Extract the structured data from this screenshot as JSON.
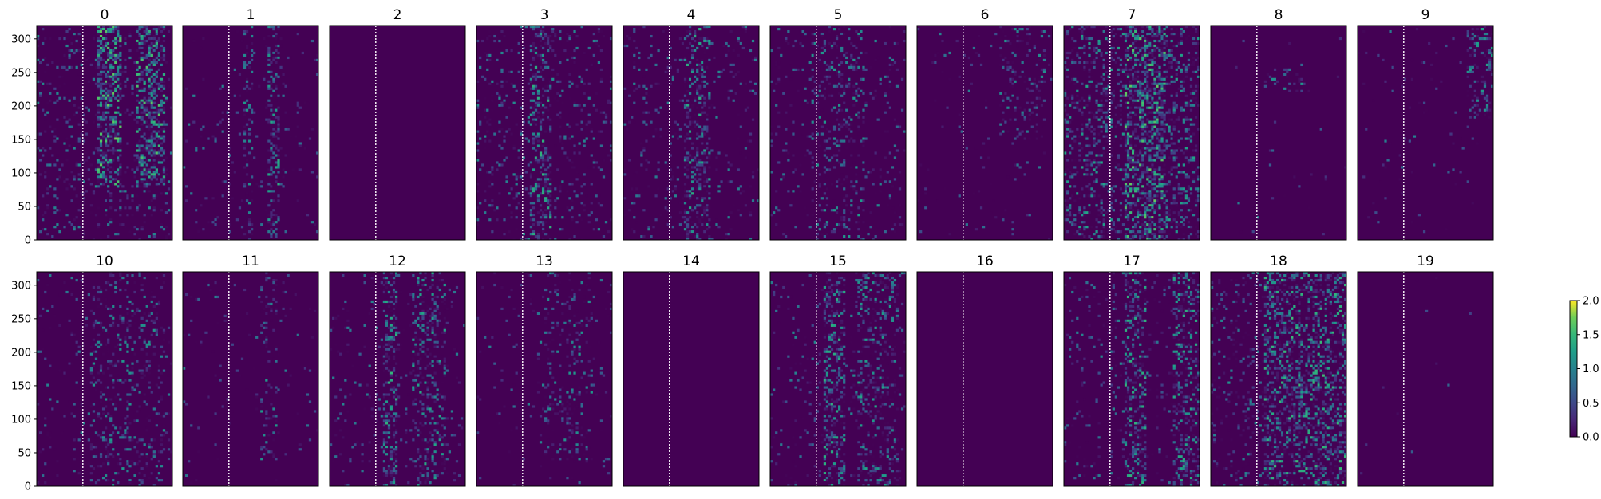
{
  "chart_data": {
    "type": "heatmap",
    "layout": {
      "rows": 2,
      "cols": 10
    },
    "panels": [
      {
        "title": "0",
        "density": 0.3,
        "bands": [
          [
            0.45,
            0.62,
            0.95
          ],
          [
            0.74,
            0.95,
            0.85
          ]
        ],
        "yband": [
          80,
          320
        ]
      },
      {
        "title": "1",
        "density": 0.08,
        "bands": [
          [
            0.62,
            0.72,
            0.6
          ],
          [
            0.45,
            0.52,
            0.35
          ]
        ],
        "yband": [
          0,
          320
        ]
      },
      {
        "title": "2",
        "density": 0.0,
        "bands": [],
        "yband": [
          0,
          320
        ]
      },
      {
        "title": "3",
        "density": 0.28,
        "bands": [
          [
            0.4,
            0.55,
            0.55
          ]
        ],
        "yband": [
          0,
          320
        ]
      },
      {
        "title": "4",
        "density": 0.2,
        "bands": [
          [
            0.45,
            0.65,
            0.5
          ]
        ],
        "yband": [
          0,
          320
        ]
      },
      {
        "title": "5",
        "density": 0.16,
        "bands": [
          [
            0.3,
            0.7,
            0.25
          ]
        ],
        "yband": [
          0,
          320
        ]
      },
      {
        "title": "6",
        "density": 0.07,
        "bands": [
          [
            0.6,
            0.95,
            0.25
          ]
        ],
        "yband": [
          150,
          320
        ]
      },
      {
        "title": "7",
        "density": 0.2,
        "bands": [
          [
            0.45,
            0.75,
            0.6
          ],
          [
            0.0,
            1.0,
            0.35
          ]
        ],
        "yband": [
          0,
          320
        ]
      },
      {
        "title": "8",
        "density": 0.02,
        "bands": [
          [
            0.4,
            0.7,
            0.3
          ]
        ],
        "yband": [
          220,
          260
        ]
      },
      {
        "title": "9",
        "density": 0.04,
        "bands": [
          [
            0.8,
            1.0,
            0.45
          ]
        ],
        "yband": [
          180,
          320
        ]
      },
      {
        "title": "10",
        "density": 0.12,
        "bands": [
          [
            0.4,
            0.95,
            0.25
          ]
        ],
        "yband": [
          0,
          320
        ]
      },
      {
        "title": "11",
        "density": 0.05,
        "bands": [
          [
            0.58,
            0.7,
            0.3
          ]
        ],
        "yband": [
          40,
          320
        ]
      },
      {
        "title": "12",
        "density": 0.12,
        "bands": [
          [
            0.4,
            0.5,
            0.65
          ],
          [
            0.6,
            0.85,
            0.45
          ]
        ],
        "yband": [
          0,
          320
        ]
      },
      {
        "title": "13",
        "density": 0.07,
        "bands": [
          [
            0.5,
            0.85,
            0.25
          ]
        ],
        "yband": [
          40,
          320
        ]
      },
      {
        "title": "14",
        "density": 0.0,
        "bands": [],
        "yband": [
          0,
          320
        ]
      },
      {
        "title": "15",
        "density": 0.14,
        "bands": [
          [
            0.4,
            0.55,
            0.6
          ],
          [
            0.65,
            0.95,
            0.4
          ]
        ],
        "yband": [
          0,
          320
        ]
      },
      {
        "title": "16",
        "density": 0.0,
        "bands": [],
        "yband": [
          0,
          320
        ]
      },
      {
        "title": "17",
        "density": 0.18,
        "bands": [
          [
            0.45,
            0.6,
            0.6
          ],
          [
            0.8,
            1.0,
            0.55
          ]
        ],
        "yband": [
          0,
          320
        ]
      },
      {
        "title": "18",
        "density": 0.34,
        "bands": [
          [
            0.4,
            1.0,
            0.6
          ]
        ],
        "yband": [
          0,
          320
        ]
      },
      {
        "title": "19",
        "density": 0.01,
        "bands": [],
        "yband": [
          0,
          320
        ]
      }
    ],
    "yticks": [
      0,
      50,
      100,
      150,
      200,
      250,
      300
    ],
    "ylim": [
      0,
      320
    ],
    "colorbar": {
      "ticks": [
        "0.0",
        "0.5",
        "1.0",
        "1.5",
        "2.0"
      ],
      "range": [
        0,
        2
      ],
      "colormap": "viridis"
    },
    "marker_line": {
      "style": "dotted",
      "color": "#ffffff",
      "x_fraction": 0.34
    },
    "background_color": "#440154"
  }
}
